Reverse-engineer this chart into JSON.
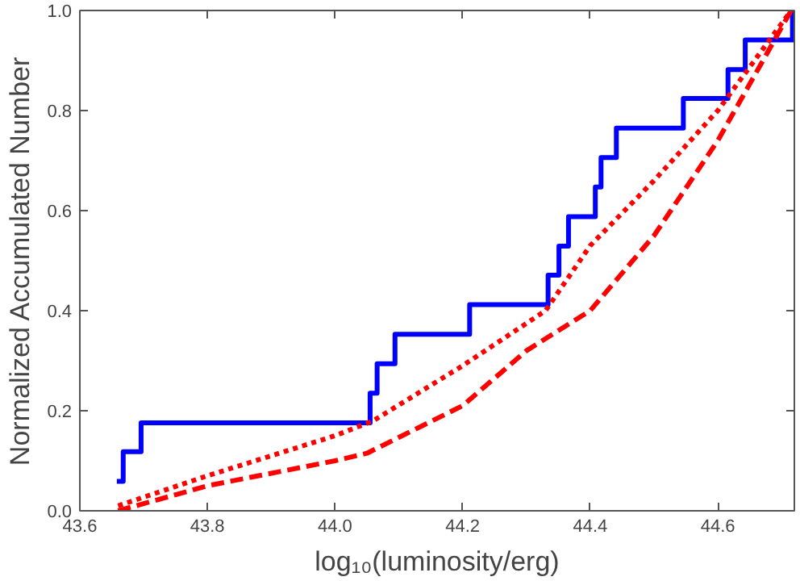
{
  "chart_data": {
    "type": "line",
    "xlabel": "log₁₀(luminosity/erg)",
    "ylabel": "Normalized Accumulated Number",
    "xlim": [
      43.6,
      44.72
    ],
    "ylim": [
      0,
      1.0
    ],
    "xticks": [
      {
        "value": 43.6,
        "label": "43.6"
      },
      {
        "value": 43.8,
        "label": "43.8"
      },
      {
        "value": 44.0,
        "label": "44.0"
      },
      {
        "value": 44.2,
        "label": "44.2"
      },
      {
        "value": 44.4,
        "label": "44.4"
      },
      {
        "value": 44.6,
        "label": "44.6"
      }
    ],
    "yticks": [
      {
        "value": 0,
        "label": "0.0"
      },
      {
        "value": 0.2,
        "label": "0.2"
      },
      {
        "value": 0.4,
        "label": "0.4"
      },
      {
        "value": 0.6,
        "label": "0.6"
      },
      {
        "value": 0.8,
        "label": "0.8"
      },
      {
        "value": 1.0,
        "label": "1.0"
      }
    ],
    "grid": false,
    "marker": "none",
    "series": [
      {
        "type": "step",
        "color": "#0000ff",
        "line_style": "solid",
        "x": [
          43.658,
          43.668,
          43.696,
          44.055,
          44.066,
          44.094,
          44.211,
          44.334,
          44.351,
          44.366,
          44.408,
          44.417,
          44.441,
          44.546,
          44.616,
          44.643,
          44.717
        ],
        "values": [
          0.059,
          0.118,
          0.176,
          0.235,
          0.294,
          0.353,
          0.412,
          0.471,
          0.529,
          0.588,
          0.647,
          0.706,
          0.765,
          0.824,
          0.882,
          0.941,
          1.0
        ]
      },
      {
        "color": "#ff0000",
        "line_style": "dotted",
        "x": [
          43.66,
          43.8,
          44.0,
          44.06,
          44.13,
          44.2,
          44.33,
          44.4,
          44.5,
          44.6,
          44.715
        ],
        "values": [
          0.01,
          0.07,
          0.15,
          0.18,
          0.235,
          0.29,
          0.4,
          0.53,
          0.66,
          0.8,
          1.0
        ]
      },
      {
        "color": "#ff0000",
        "line_style": "dashed",
        "x": [
          43.66,
          43.8,
          44.0,
          44.05,
          44.2,
          44.3,
          44.4,
          44.5,
          44.6,
          44.715
        ],
        "values": [
          0.0,
          0.05,
          0.1,
          0.115,
          0.21,
          0.32,
          0.4,
          0.55,
          0.74,
          1.0
        ]
      }
    ]
  }
}
